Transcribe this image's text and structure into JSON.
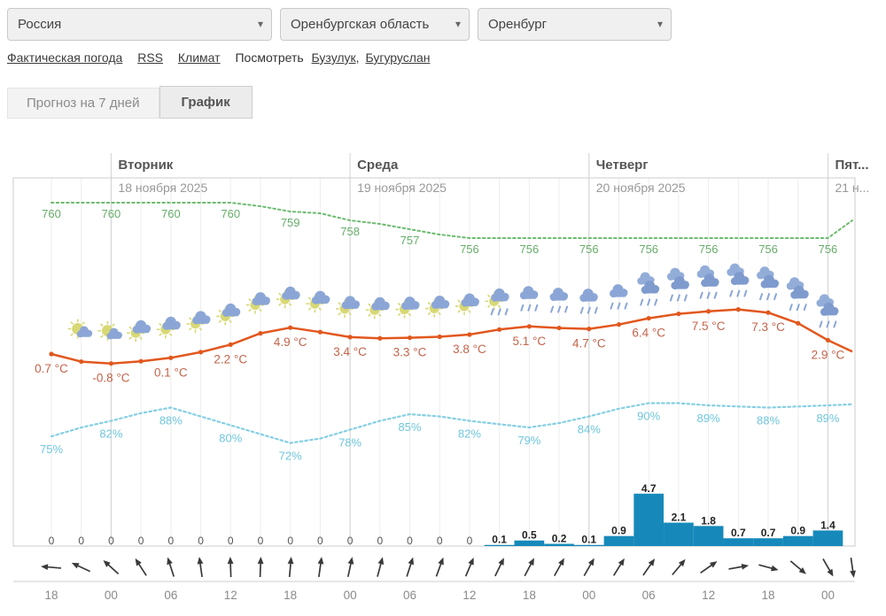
{
  "location_bar": {
    "country": "Россия",
    "region": "Оренбургская область",
    "city": "Оренбург"
  },
  "links": {
    "actual_weather": "Фактическая погода",
    "rss": "RSS",
    "climate": "Климат",
    "see_also": "Посмотреть",
    "city1": "Бузулук,",
    "city2": "Бугуруслан"
  },
  "tabs": {
    "forecast": "Прогноз на 7 дней",
    "graph": "График"
  },
  "chart_data": {
    "type": "line",
    "days": [
      {
        "name": "Вторник",
        "date": "18 ноября 2025"
      },
      {
        "name": "Среда",
        "date": "19 ноября 2025"
      },
      {
        "name": "Четверг",
        "date": "20 ноября 2025"
      },
      {
        "name": "Пят...",
        "date": "21 н..."
      }
    ],
    "x_labels": [
      "18",
      "00",
      "06",
      "12",
      "18",
      "00",
      "06",
      "12",
      "18",
      "00",
      "06",
      "12",
      "18",
      "00"
    ],
    "pressure": {
      "labels": [
        "760",
        "760",
        "760",
        "760",
        "759",
        "758",
        "757",
        "756",
        "756",
        "756",
        "756",
        "756",
        "756",
        "756"
      ],
      "values": [
        760,
        760,
        760,
        760,
        760,
        760,
        760,
        759.6,
        759,
        758.8,
        758,
        757.6,
        757,
        756.4,
        756,
        756,
        756,
        756,
        756,
        756,
        756,
        756,
        756,
        756,
        756,
        756,
        756
      ],
      "end_value": 758,
      "color": "#6cbb6e",
      "label_color": "#67ad6a"
    },
    "temperature": {
      "labels": [
        "0.7 °C",
        "-0.8 °C",
        "0.1 °C",
        "2.2 °C",
        "4.9 °C",
        "3.4 °C",
        "3.3 °C",
        "3.8 °C",
        "5.1 °C",
        "4.7 °C",
        "6.4 °C",
        "7.5 °C",
        "7.3 °C",
        "2.9 °C"
      ],
      "values": [
        0.7,
        -0.5,
        -0.8,
        -0.45,
        0.1,
        1.0,
        2.2,
        4.0,
        4.9,
        4.2,
        3.4,
        3.2,
        3.3,
        3.45,
        3.8,
        4.6,
        5.1,
        4.85,
        4.7,
        5.4,
        6.4,
        7.1,
        7.5,
        7.8,
        7.3,
        5.6,
        2.9
      ],
      "end_value": 1.1,
      "color": "#e2571e",
      "label_color": "#c4634a"
    },
    "humidity": {
      "labels": [
        "75%",
        "82%",
        "88%",
        "80%",
        "72%",
        "78%",
        "85%",
        "82%",
        "79%",
        "84%",
        "90%",
        "89%",
        "88%",
        "89%"
      ],
      "values": [
        75,
        79,
        82,
        85.5,
        88,
        84,
        80,
        76,
        72,
        74,
        78,
        82,
        85,
        84,
        82,
        80.5,
        79,
        81,
        84,
        87.5,
        90,
        90,
        89,
        88.5,
        88,
        88.5,
        89
      ],
      "end_value": 89.5,
      "color": "#85cfe4",
      "label_color": "#6fc6dc"
    },
    "precipitation": {
      "values": [
        0,
        0,
        0,
        0,
        0,
        0,
        0,
        0,
        0,
        0,
        0,
        0,
        0,
        0,
        0,
        0.1,
        0.5,
        0.2,
        0.1,
        0.9,
        4.7,
        2.1,
        1.8,
        0.7,
        0.7,
        0.9,
        1.4
      ],
      "color": "#1689ba"
    },
    "wind_angles": [
      -85,
      -65,
      -48,
      -33,
      -18,
      -8,
      -2,
      2,
      5,
      8,
      12,
      15,
      18,
      20,
      23,
      26,
      28,
      29,
      30,
      32,
      35,
      40,
      55,
      80,
      105,
      130,
      150,
      172
    ],
    "icons": [
      "sun-cloud",
      "sun-cloud",
      "cloud-sun",
      "cloud-sun",
      "cloud-sun",
      "cloud-sun",
      "cloud-sun",
      "cloud-sun",
      "cloud-sun",
      "cloud-sun",
      "cloud-sun",
      "cloud-sun",
      "cloud-sun",
      "cloud-sun",
      "cloud-sun-rain",
      "cloud-rain",
      "cloud-rain",
      "cloud-rain",
      "cloud-rain",
      "clouds-rain",
      "clouds-rain",
      "clouds-rain",
      "clouds-rain",
      "clouds-rain",
      "clouds-rain",
      "clouds-rain"
    ]
  }
}
